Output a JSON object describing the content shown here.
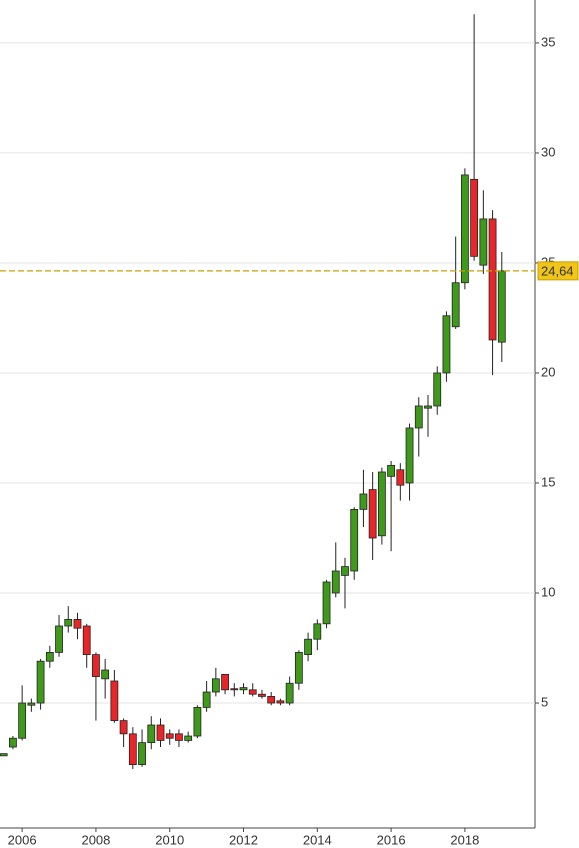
{
  "chart_data": {
    "type": "candlestick",
    "x": [
      2005.5,
      2005.75,
      2006,
      2006.25,
      2006.5,
      2006.75,
      2007,
      2007.25,
      2007.5,
      2007.75,
      2008,
      2008.25,
      2008.5,
      2008.75,
      2009,
      2009.25,
      2009.5,
      2009.75,
      2010,
      2010.25,
      2010.5,
      2010.75,
      2011,
      2011.25,
      2011.5,
      2011.75,
      2012,
      2012.25,
      2012.5,
      2012.75,
      2013,
      2013.25,
      2013.5,
      2013.75,
      2014,
      2014.25,
      2014.5,
      2014.75,
      2015,
      2015.25,
      2015.5,
      2015.75,
      2016,
      2016.25,
      2016.5,
      2016.75,
      2017,
      2017.25,
      2017.5,
      2017.75,
      2018,
      2018.25,
      2018.5,
      2018.75,
      2019
    ],
    "open": [
      2.6,
      3.0,
      3.4,
      4.9,
      5.0,
      6.9,
      7.3,
      8.5,
      8.8,
      8.5,
      7.2,
      6.1,
      6.0,
      4.2,
      3.6,
      2.2,
      3.2,
      4.0,
      3.6,
      3.6,
      3.3,
      3.5,
      4.8,
      5.5,
      6.3,
      5.65,
      5.6,
      5.6,
      5.4,
      5.3,
      5.1,
      5.0,
      5.9,
      7.2,
      7.9,
      8.6,
      10.0,
      10.8,
      11.0,
      13.8,
      14.7,
      12.6,
      15.3,
      15.6,
      15.0,
      17.5,
      18.4,
      18.5,
      20.0,
      22.1,
      24.1,
      28.8,
      24.9,
      27.0,
      21.4
    ],
    "high": [
      2.7,
      3.5,
      5.8,
      5.2,
      7.0,
      7.6,
      9.0,
      9.4,
      9.1,
      8.6,
      7.3,
      7.0,
      6.5,
      4.3,
      3.9,
      3.8,
      4.4,
      4.3,
      3.8,
      3.8,
      3.7,
      4.9,
      6.0,
      6.6,
      6.3,
      5.9,
      5.9,
      5.9,
      5.6,
      5.5,
      5.2,
      6.2,
      7.4,
      8.2,
      8.8,
      10.6,
      12.3,
      11.6,
      13.9,
      15.6,
      15.5,
      15.7,
      16.0,
      15.9,
      17.7,
      18.9,
      19.0,
      20.3,
      22.8,
      26.2,
      29.3,
      36.3,
      28.3,
      27.4,
      25.5
    ],
    "low": [
      2.6,
      2.9,
      3.3,
      4.6,
      4.7,
      6.6,
      7.1,
      8.2,
      7.9,
      6.6,
      4.2,
      5.2,
      4.1,
      3.0,
      2.0,
      2.1,
      2.9,
      3.0,
      3.1,
      3.0,
      3.2,
      3.4,
      4.6,
      5.3,
      5.4,
      5.3,
      5.4,
      5.3,
      5.2,
      4.9,
      4.9,
      4.9,
      5.6,
      6.9,
      7.4,
      8.4,
      9.8,
      9.3,
      10.6,
      13.0,
      11.5,
      12.2,
      11.9,
      14.2,
      14.2,
      16.2,
      17.1,
      18.1,
      19.6,
      22.0,
      23.8,
      25.1,
      24.5,
      19.9,
      20.5
    ],
    "close": [
      2.7,
      3.4,
      5.0,
      5.0,
      6.9,
      7.3,
      8.5,
      8.8,
      8.4,
      7.2,
      6.2,
      6.5,
      4.2,
      3.6,
      2.2,
      3.2,
      4.0,
      3.3,
      3.4,
      3.3,
      3.5,
      4.8,
      5.5,
      6.1,
      5.6,
      5.6,
      5.7,
      5.4,
      5.3,
      5.0,
      5.0,
      5.9,
      7.3,
      7.9,
      8.6,
      10.5,
      11.0,
      11.2,
      13.8,
      14.5,
      12.5,
      15.5,
      15.8,
      14.9,
      17.5,
      18.5,
      18.5,
      20.0,
      22.6,
      24.1,
      29.0,
      25.3,
      27.0,
      21.5,
      24.64
    ],
    "up_color": "#3f9a1c",
    "down_color": "#e8262a",
    "last_price": {
      "value": 24.64,
      "label": "24,64"
    },
    "last_price_color": "#c9a000",
    "xlim": [
      2005.4,
      2019.9
    ],
    "ylim": [
      -0.68,
      36.95
    ],
    "xticks": [
      2006,
      2008,
      2010,
      2012,
      2014,
      2016,
      2018
    ],
    "yticks": [
      5,
      10,
      15,
      20,
      25,
      30,
      35
    ],
    "grid": true
  }
}
